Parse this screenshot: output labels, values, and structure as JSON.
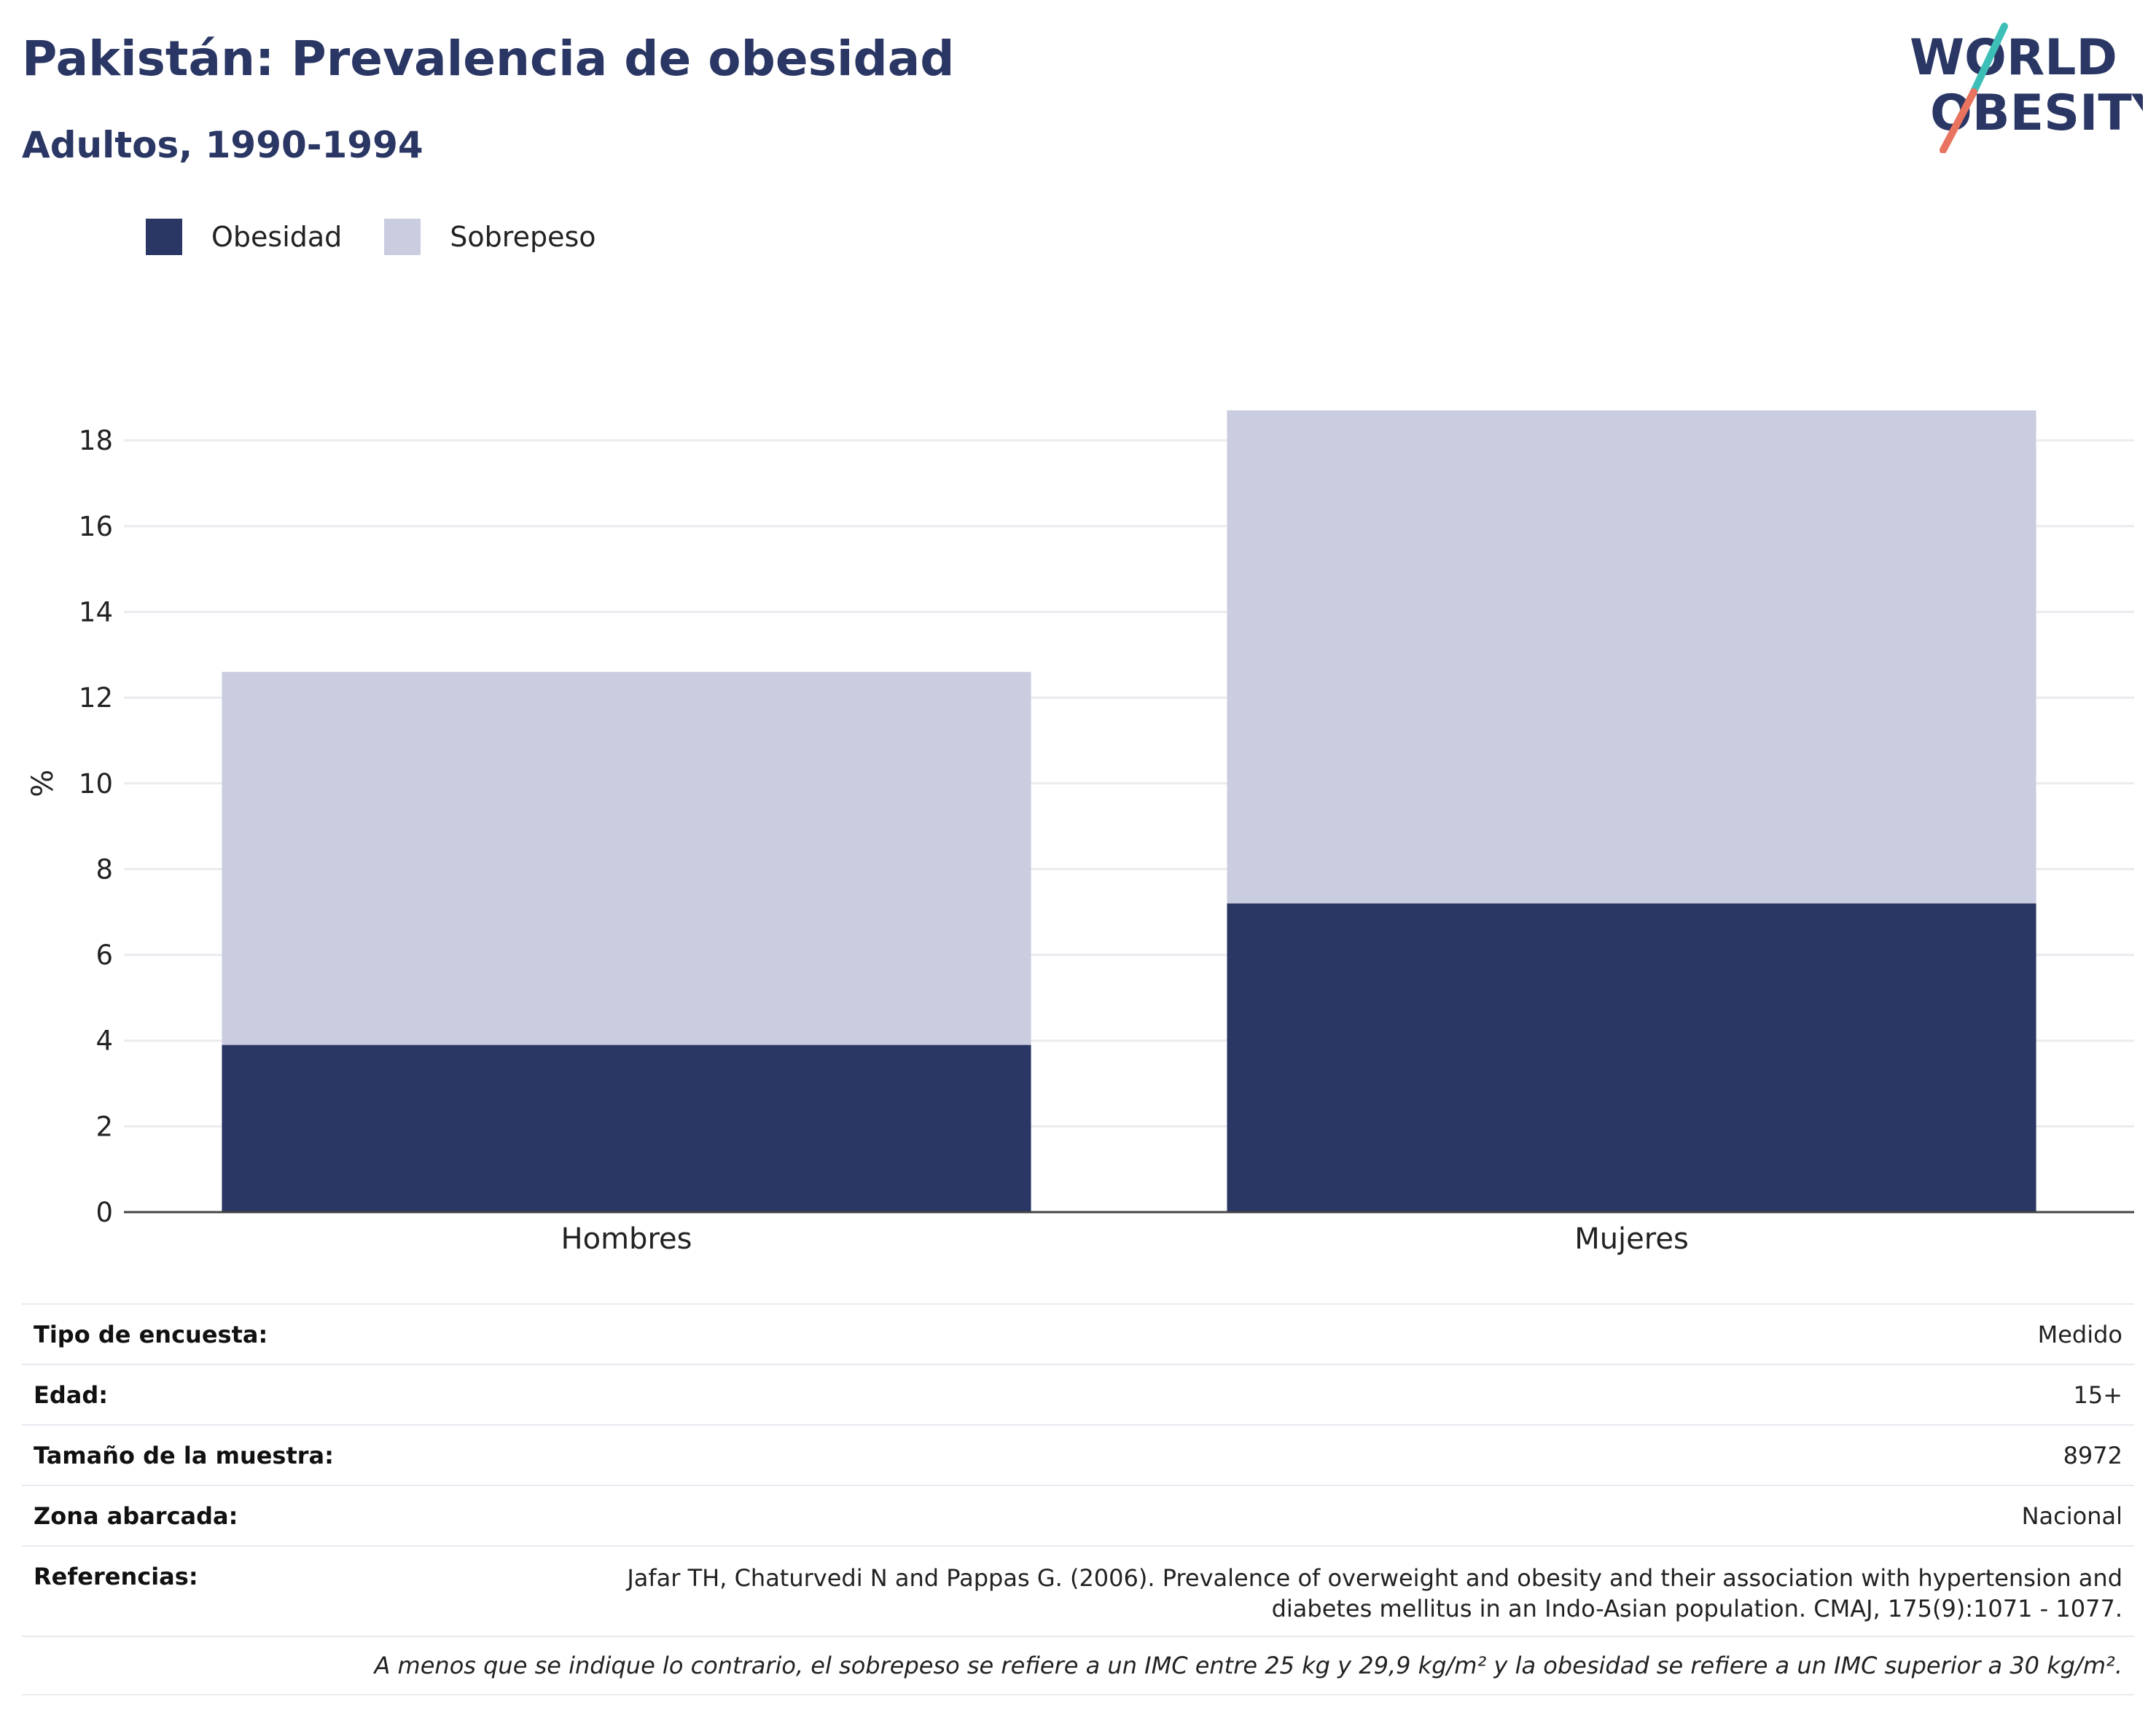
{
  "header": {
    "title": "Pakistán: Prevalencia de obesidad",
    "subtitle": "Adultos, 1990-1994"
  },
  "logo": {
    "line1": "WORLD",
    "line2": "OBESITY",
    "colors": {
      "text": "#2a3663",
      "slash_top": "#3dbfb8",
      "slash_bottom": "#e8735f"
    }
  },
  "legend": [
    {
      "name": "Obesidad",
      "color": "#2a3663"
    },
    {
      "name": "Sobrepeso",
      "color": "#cacce0"
    }
  ],
  "chart_data": {
    "type": "bar",
    "stacked": true,
    "categories": [
      "Hombres",
      "Mujeres"
    ],
    "series": [
      {
        "name": "Obesidad",
        "values": [
          3.9,
          7.2
        ],
        "color": "#2a3663"
      },
      {
        "name": "Sobrepeso",
        "values": [
          8.7,
          11.5
        ],
        "color": "#cacce0"
      }
    ],
    "ylabel": "%",
    "ylim": [
      0,
      18.7
    ],
    "yticks": [
      0,
      2,
      4,
      6,
      8,
      10,
      12,
      14,
      16,
      18
    ],
    "grid": true,
    "legend_position": "top-left"
  },
  "info": {
    "rows": [
      {
        "label": "Tipo de encuesta:",
        "value": "Medido"
      },
      {
        "label": "Edad:",
        "value": "15+"
      },
      {
        "label": "Tamaño de la muestra:",
        "value": "8972"
      },
      {
        "label": "Zona abarcada:",
        "value": "Nacional"
      }
    ],
    "references": {
      "label": "Referencias:",
      "line1": "Jafar TH, Chaturvedi N and Pappas G. (2006). Prevalence of overweight and obesity and their association with hypertension and",
      "line2": "diabetes mellitus in an Indo-Asian population. CMAJ, 175(9):1071 - 1077."
    },
    "footnote": "A menos que se indique lo contrario, el sobrepeso se refiere a un IMC entre 25 kg y 29,9 kg/m² y la obesidad se refiere a un IMC superior a 30 kg/m²."
  }
}
